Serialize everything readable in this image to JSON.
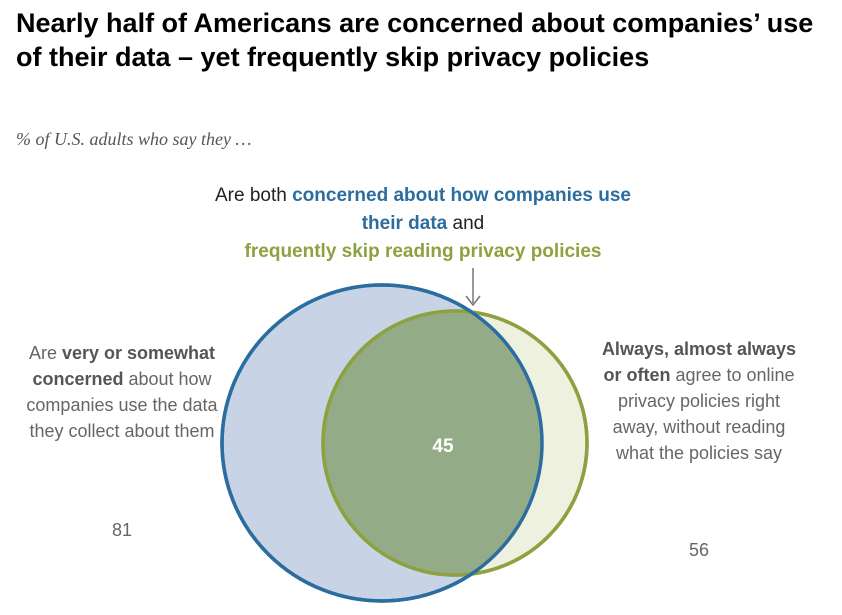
{
  "title": "Nearly half of Americans are concerned about companies’ use of their data – yet frequently skip privacy policies",
  "subtitle": "% of U.S. adults who say they …",
  "annotations": {
    "overlap": {
      "prefix": "Are both ",
      "concerned": "concerned about how companies use their data",
      "joiner": " and",
      "skip": "frequently skip reading privacy policies"
    },
    "left": {
      "prefix": "Are ",
      "bold": "very or somewhat concerned",
      "rest": " about how companies use the data they collect about them"
    },
    "right": {
      "bold": "Always, almost always or often",
      "rest": " agree to online privacy policies right away, without reading what the policies say"
    }
  },
  "colors": {
    "left_fill": "#c9d3e6",
    "left_stroke": "#2c6da0",
    "right_fill": "#eef0e0",
    "right_stroke": "#8da23f",
    "overlap_fill": "#94ab88",
    "label_blue": "#2c6da0",
    "label_green": "#8da23f"
  },
  "chart_data": {
    "type": "venn",
    "sets": [
      {
        "label": "Very or somewhat concerned about how companies use the data they collect about them",
        "value": 81
      },
      {
        "label": "Always, almost always or often agree to online privacy policies right away, without reading what the policies say",
        "value": 56
      }
    ],
    "intersection": {
      "value": 45
    }
  },
  "values": {
    "left": "81",
    "right": "56",
    "overlap": "45"
  }
}
